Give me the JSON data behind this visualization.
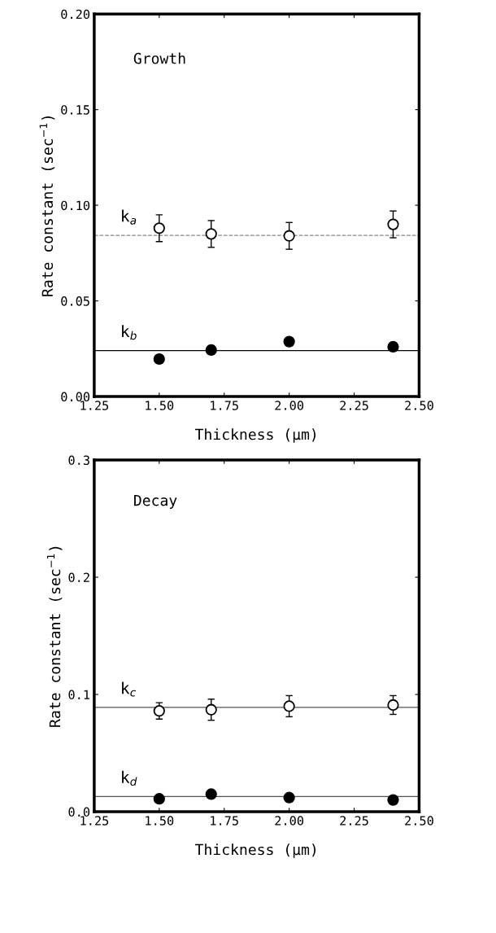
{
  "chart_data": [
    {
      "type": "scatter",
      "xlabel": "Thickness (μm)",
      "ylabel": "Rate constant (sec$^{−1}$)",
      "x": [
        1.5,
        1.7,
        2.0,
        2.4
      ],
      "xlim": [
        1.25,
        2.5
      ],
      "xticks": [
        {
          "value": 1.25,
          "label": "1.25"
        },
        {
          "value": 1.5,
          "label": "1.50"
        },
        {
          "value": 1.75,
          "label": "1.75"
        },
        {
          "value": 2.0,
          "label": "2.00"
        },
        {
          "value": 2.25,
          "label": "2.25"
        },
        {
          "value": 2.5,
          "label": "2.50"
        }
      ],
      "ylim": [
        0,
        0.2
      ],
      "yticks": [
        {
          "value": 0,
          "label": "0.00"
        },
        {
          "value": 0.05,
          "label": "0.05"
        },
        {
          "value": 0.1,
          "label": "0.10"
        },
        {
          "value": 0.15,
          "label": "0.15"
        },
        {
          "value": 0.2,
          "label": "0.20"
        }
      ],
      "marker": "circle",
      "series": [
        {
          "color": "#ffffff",
          "values": [
            0.088,
            0.085,
            0.084,
            0.09
          ],
          "errors": [
            0.007,
            0.007,
            0.007,
            0.007
          ]
        },
        {
          "color": "#000000",
          "values": [
            0.0196,
            0.0243,
            0.0287,
            0.026
          ],
          "errors": [
            0.002,
            0.002,
            0.002,
            0.002
          ]
        }
      ],
      "ref_lines": [
        {
          "axis": "y",
          "value": 0.0843,
          "color": "#888888",
          "line_style": "dashed"
        },
        {
          "axis": "y",
          "value": 0.024,
          "color": "#000000",
          "line_style": "solid"
        }
      ],
      "annotations": [
        "Growth",
        "k$_{a}$",
        "k$_{b}$"
      ]
    },
    {
      "type": "scatter",
      "xlabel": "Thickness (μm)",
      "ylabel": "Rate constant (sec$^{−1}$)",
      "x": [
        1.5,
        1.7,
        2.0,
        2.4
      ],
      "xlim": [
        1.25,
        2.5
      ],
      "xticks": [
        {
          "value": 1.25,
          "label": "1.25"
        },
        {
          "value": 1.5,
          "label": "1.50"
        },
        {
          "value": 1.75,
          "label": "1.75"
        },
        {
          "value": 2.0,
          "label": "2.00"
        },
        {
          "value": 2.25,
          "label": "2.25"
        },
        {
          "value": 2.5,
          "label": "2.50"
        }
      ],
      "ylim": [
        0,
        0.3
      ],
      "yticks": [
        {
          "value": 0,
          "label": "0.0"
        },
        {
          "value": 0.1,
          "label": "0.1"
        },
        {
          "value": 0.2,
          "label": "0.2"
        },
        {
          "value": 0.3,
          "label": "0.3"
        }
      ],
      "marker": "circle",
      "series": [
        {
          "color": "#ffffff",
          "values": [
            0.086,
            0.087,
            0.09,
            0.091
          ],
          "errors": [
            0.007,
            0.009,
            0.009,
            0.008
          ]
        },
        {
          "color": "#000000",
          "values": [
            0.011,
            0.015,
            0.012,
            0.01
          ]
        }
      ],
      "ref_lines": [
        {
          "axis": "y",
          "value": 0.089,
          "color": "#555555",
          "line_style": "solid"
        },
        {
          "axis": "y",
          "value": 0.013,
          "color": "#555555",
          "line_style": "solid"
        }
      ],
      "annotations": [
        "Decay",
        "k$_{c}$",
        "k$_{d}$"
      ]
    }
  ]
}
